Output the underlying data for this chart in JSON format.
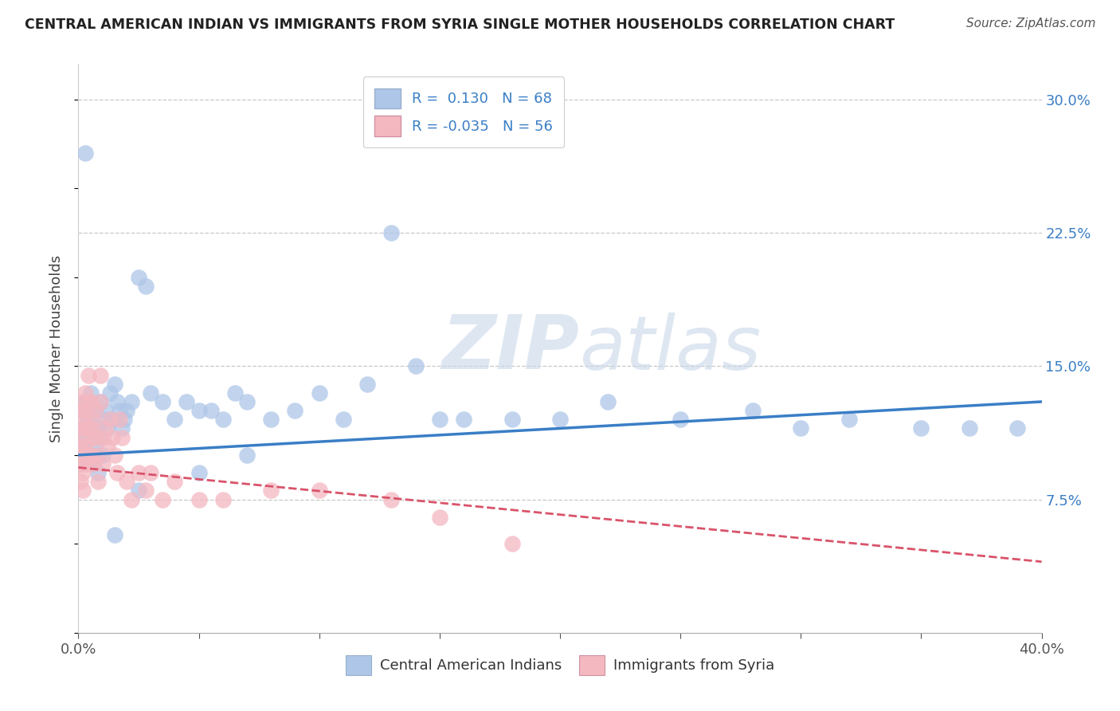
{
  "title": "CENTRAL AMERICAN INDIAN VS IMMIGRANTS FROM SYRIA SINGLE MOTHER HOUSEHOLDS CORRELATION CHART",
  "source": "Source: ZipAtlas.com",
  "ylabel": "Single Mother Households",
  "right_yticks": [
    "30.0%",
    "22.5%",
    "15.0%",
    "7.5%"
  ],
  "right_ytick_vals": [
    0.3,
    0.225,
    0.15,
    0.075
  ],
  "legend_label1": "R =  0.130   N = 68",
  "legend_label2": "R = -0.035   N = 56",
  "legend_color1": "#aec6e8",
  "legend_color2": "#f4b8c1",
  "scatter_color1": "#aec6e8",
  "scatter_color2": "#f4b8c1",
  "line_color1": "#3a7ec6",
  "line_color2": "#d9536a",
  "watermark_zip": "ZIP",
  "watermark_atlas": "atlas",
  "xlim": [
    0.0,
    0.4
  ],
  "ylim": [
    0.0,
    0.32
  ],
  "blue_x": [
    0.001,
    0.001,
    0.002,
    0.002,
    0.003,
    0.003,
    0.004,
    0.004,
    0.005,
    0.005,
    0.006,
    0.006,
    0.007,
    0.007,
    0.008,
    0.008,
    0.009,
    0.009,
    0.01,
    0.01,
    0.011,
    0.012,
    0.013,
    0.014,
    0.015,
    0.016,
    0.017,
    0.018,
    0.019,
    0.02,
    0.022,
    0.025,
    0.028,
    0.03,
    0.035,
    0.04,
    0.045,
    0.05,
    0.055,
    0.06,
    0.065,
    0.07,
    0.08,
    0.09,
    0.1,
    0.11,
    0.12,
    0.13,
    0.14,
    0.15,
    0.16,
    0.18,
    0.2,
    0.22,
    0.25,
    0.28,
    0.3,
    0.32,
    0.35,
    0.37,
    0.39,
    0.003,
    0.005,
    0.008,
    0.015,
    0.025,
    0.05,
    0.07
  ],
  "blue_y": [
    0.115,
    0.095,
    0.125,
    0.105,
    0.13,
    0.11,
    0.12,
    0.1,
    0.135,
    0.115,
    0.11,
    0.095,
    0.125,
    0.105,
    0.115,
    0.1,
    0.13,
    0.11,
    0.12,
    0.1,
    0.125,
    0.115,
    0.135,
    0.12,
    0.14,
    0.13,
    0.125,
    0.115,
    0.12,
    0.125,
    0.13,
    0.2,
    0.195,
    0.135,
    0.13,
    0.12,
    0.13,
    0.125,
    0.125,
    0.12,
    0.135,
    0.13,
    0.12,
    0.125,
    0.135,
    0.12,
    0.14,
    0.225,
    0.15,
    0.12,
    0.12,
    0.12,
    0.12,
    0.13,
    0.12,
    0.125,
    0.115,
    0.12,
    0.115,
    0.115,
    0.115,
    0.27,
    0.1,
    0.09,
    0.055,
    0.08,
    0.09,
    0.1
  ],
  "pink_x": [
    0.001,
    0.001,
    0.001,
    0.001,
    0.001,
    0.002,
    0.002,
    0.002,
    0.002,
    0.002,
    0.002,
    0.003,
    0.003,
    0.003,
    0.003,
    0.003,
    0.004,
    0.004,
    0.004,
    0.004,
    0.005,
    0.005,
    0.005,
    0.006,
    0.006,
    0.006,
    0.007,
    0.007,
    0.008,
    0.008,
    0.009,
    0.009,
    0.01,
    0.01,
    0.011,
    0.012,
    0.013,
    0.014,
    0.015,
    0.016,
    0.017,
    0.018,
    0.02,
    0.022,
    0.025,
    0.028,
    0.03,
    0.035,
    0.04,
    0.05,
    0.06,
    0.08,
    0.1,
    0.13,
    0.15,
    0.18
  ],
  "pink_y": [
    0.125,
    0.115,
    0.105,
    0.095,
    0.085,
    0.13,
    0.12,
    0.11,
    0.1,
    0.09,
    0.08,
    0.135,
    0.125,
    0.115,
    0.105,
    0.095,
    0.145,
    0.13,
    0.115,
    0.1,
    0.13,
    0.115,
    0.1,
    0.12,
    0.11,
    0.095,
    0.125,
    0.11,
    0.1,
    0.085,
    0.145,
    0.13,
    0.11,
    0.095,
    0.115,
    0.105,
    0.12,
    0.11,
    0.1,
    0.09,
    0.12,
    0.11,
    0.085,
    0.075,
    0.09,
    0.08,
    0.09,
    0.075,
    0.085,
    0.075,
    0.075,
    0.08,
    0.08,
    0.075,
    0.065,
    0.05
  ],
  "blue_line_x": [
    0.0,
    0.4
  ],
  "blue_line_y": [
    0.1,
    0.13
  ],
  "pink_line_x": [
    0.0,
    0.4
  ],
  "pink_line_y": [
    0.093,
    0.04
  ],
  "xtick_positions": [
    0.0,
    0.05,
    0.1,
    0.15,
    0.2,
    0.25,
    0.3,
    0.35,
    0.4
  ],
  "xtick_labels": [
    "0.0%",
    "",
    "",
    "",
    "",
    "",
    "",
    "",
    "40.0%"
  ]
}
